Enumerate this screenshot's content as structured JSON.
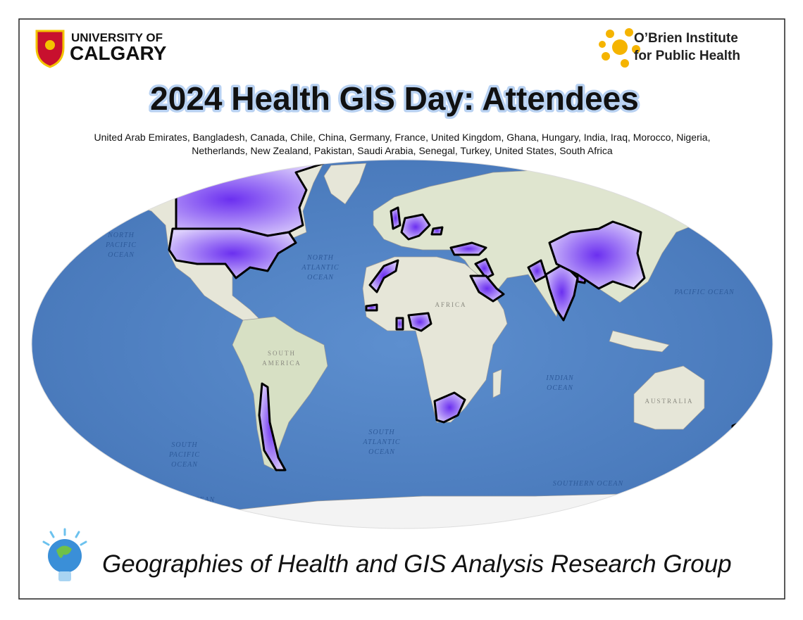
{
  "header": {
    "left_logo": [
      "UNIVERSITY OF",
      "CALGARY"
    ],
    "right_logo": [
      "O’Brien Institute",
      "for Public Health"
    ]
  },
  "title": "2024 Health GIS Day: Attendees",
  "countries": [
    "United Arab Emirates, Bangladesh, Canada, Chile, China, Germany, France, United Kingdom, Ghana, Hungary, India, Iraq, Morocco, Nigeria,",
    "Netherlands, New Zealand, Pakistan, Saudi Arabia, Senegal, Turkey, United States, South Africa"
  ],
  "map_labels": [
    {
      "lines": [
        "NORTH",
        "PACIFIC",
        "OCEAN"
      ]
    },
    {
      "lines": [
        "NORTH",
        "ATLANTIC",
        "OCEAN"
      ]
    },
    {
      "lines": [
        "PACIFIC OCEAN"
      ]
    },
    {
      "lines": [
        "INDIAN",
        "OCEAN"
      ]
    },
    {
      "lines": [
        "SOUTH",
        "ATLANTIC",
        "OCEAN"
      ]
    },
    {
      "lines": [
        "SOUTH",
        "PACIFIC",
        "OCEAN"
      ]
    },
    {
      "lines": [
        "SOUTHERN OCEAN"
      ]
    },
    {
      "lines": [
        "SOUTHERN OCEAN"
      ]
    },
    {
      "lines": [
        "SOUTH",
        "AMERICA"
      ]
    },
    {
      "lines": [
        "AFRICA"
      ]
    },
    {
      "lines": [
        "AUSTRALIA"
      ]
    }
  ],
  "footer": "Geographies of Health and GIS Analysis Research Group"
}
